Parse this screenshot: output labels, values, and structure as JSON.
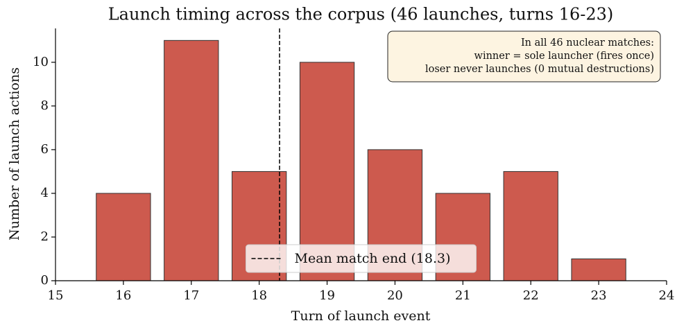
{
  "chart_data": {
    "type": "bar",
    "title": "Launch timing across the corpus (46 launches, turns 16-23)",
    "x_label": "Turn of launch event",
    "y_label": "Number of launch actions",
    "x": [
      16,
      17,
      18,
      19,
      20,
      21,
      22,
      23
    ],
    "values": [
      4,
      11,
      5,
      10,
      6,
      4,
      5,
      1
    ],
    "color": "#cd5a4e",
    "xlim": [
      15,
      24
    ],
    "xticks": [
      15,
      16,
      17,
      18,
      19,
      20,
      21,
      22,
      23,
      24
    ],
    "ylim": [
      0,
      11.55
    ],
    "yticks": [
      0,
      2,
      4,
      6,
      8,
      10
    ],
    "grid": false,
    "reference_line": {
      "value": 18.3,
      "label": "Mean match end (18.3)"
    },
    "legend": "lower center",
    "annotation": [
      "In all 46 nuclear matches:",
      "winner = sole launcher (fires once)",
      "loser never launches (0 mutual destructions)"
    ]
  }
}
